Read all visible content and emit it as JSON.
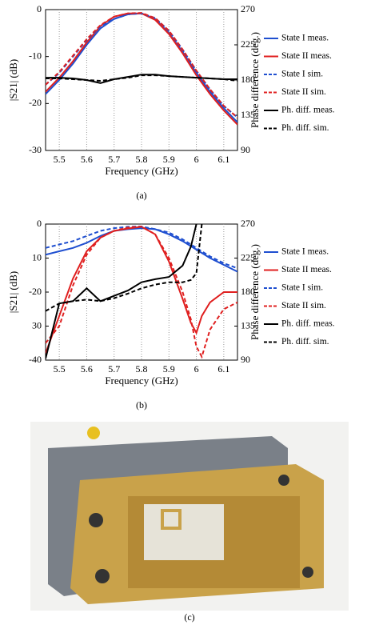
{
  "chart_data": [
    {
      "type": "line",
      "caption": "(a)",
      "xlabel": "Frequency (GHz)",
      "ylabel": "|S21| (dB)",
      "y2label": "Phase difference (deg.)",
      "xlim": [
        5.45,
        6.15
      ],
      "xticks": [
        5.5,
        5.6,
        5.7,
        5.8,
        5.9,
        6,
        6.1
      ],
      "ylim": [
        -30,
        0
      ],
      "yticks": [
        0,
        -10,
        -20,
        -30
      ],
      "y2lim": [
        90,
        270
      ],
      "y2ticks": [
        90,
        135,
        180,
        225,
        270
      ],
      "grid": "x",
      "x": [
        5.45,
        5.5,
        5.55,
        5.6,
        5.65,
        5.7,
        5.75,
        5.8,
        5.85,
        5.9,
        5.95,
        6.0,
        6.05,
        6.1,
        6.15
      ],
      "series": [
        {
          "name": "State I meas.",
          "color": "#1f4fd0",
          "dash": false,
          "values": [
            -18,
            -15,
            -11.5,
            -7.5,
            -4,
            -2,
            -1,
            -0.8,
            -2,
            -5,
            -9,
            -13.5,
            -17.5,
            -21,
            -24
          ]
        },
        {
          "name": "State II meas.",
          "color": "#e02020",
          "dash": false,
          "values": [
            -17.5,
            -14.5,
            -11,
            -7,
            -3.5,
            -1.5,
            -0.8,
            -0.8,
            -2.2,
            -5.2,
            -9.3,
            -14,
            -18,
            -21.5,
            -24.5
          ]
        },
        {
          "name": "State I sim.",
          "color": "#1f4fd0",
          "dash": true,
          "values": [
            -16,
            -13.5,
            -10,
            -6.5,
            -3.5,
            -2,
            -1,
            -0.8,
            -1.8,
            -4.5,
            -8.5,
            -13,
            -17,
            -20.5,
            -23
          ]
        },
        {
          "name": "State II sim.",
          "color": "#e02020",
          "dash": true,
          "values": [
            -16,
            -13.3,
            -9.8,
            -6.3,
            -3.3,
            -1.5,
            -0.8,
            -0.7,
            -1.8,
            -4.5,
            -8.5,
            -13,
            -17,
            -20.5,
            -23
          ]
        },
        {
          "name": "Ph. diff. meas.",
          "color": "#000000",
          "dash": false,
          "axis": "y2",
          "values": [
            183,
            183,
            182,
            180,
            176,
            181,
            184,
            187,
            187,
            185,
            184,
            183,
            182,
            181,
            181
          ]
        },
        {
          "name": "Ph. diff. sim.",
          "color": "#000000",
          "dash": true,
          "axis": "y2",
          "values": [
            182,
            182,
            181,
            180,
            179,
            181,
            183,
            186,
            186,
            185,
            184,
            183,
            182,
            181,
            179
          ]
        }
      ]
    },
    {
      "type": "line",
      "caption": "(b)",
      "xlabel": "Frequency (GHz)",
      "ylabel": "|S21| (dB)",
      "y2label": "Phase difference (deg.)",
      "xlim": [
        5.45,
        6.15
      ],
      "xticks": [
        5.5,
        5.6,
        5.7,
        5.8,
        5.9,
        6,
        6.1
      ],
      "ylim": [
        -40,
        0
      ],
      "yticks": [
        0,
        {
          "value": -10,
          "label": "10"
        },
        -20,
        {
          "value": -30,
          "label": "30"
        },
        -40
      ],
      "y2lim": [
        90,
        270
      ],
      "y2ticks": [
        90,
        135,
        180,
        225,
        270
      ],
      "grid": "x",
      "x": [
        5.45,
        5.5,
        5.55,
        5.6,
        5.65,
        5.7,
        5.75,
        5.8,
        5.85,
        5.9,
        5.95,
        5.98,
        6.0,
        6.02,
        6.05,
        6.1,
        6.15
      ],
      "series": [
        {
          "name": "State I meas.",
          "color": "#1f4fd0",
          "dash": false,
          "values": [
            -9,
            -8,
            -7,
            -5.5,
            -3.5,
            -2,
            -1.5,
            -1.2,
            -1.5,
            -3,
            -5,
            -6.5,
            -7.5,
            -8.5,
            -10,
            -12,
            -14
          ]
        },
        {
          "name": "State II meas.",
          "color": "#e02020",
          "dash": false,
          "values": [
            -38,
            -27,
            -16,
            -8,
            -4,
            -2,
            -1.3,
            -0.8,
            -3,
            -11,
            -22,
            -29,
            -32,
            -27,
            -23,
            -20,
            -20
          ]
        },
        {
          "name": "State I sim.",
          "color": "#1f4fd0",
          "dash": true,
          "values": [
            -7,
            -6,
            -5,
            -3.5,
            -2,
            -1.2,
            -0.8,
            -0.7,
            -1.5,
            -2.5,
            -4.5,
            -6,
            -7,
            -8,
            -9.5,
            -11.5,
            -13
          ]
        },
        {
          "name": "State II sim.",
          "color": "#e02020",
          "dash": true,
          "values": [
            -35,
            -30,
            -18,
            -9,
            -4,
            -2,
            -1,
            -0.7,
            -3,
            -10,
            -20,
            -28,
            -36,
            -39,
            -31,
            -25,
            -23
          ]
        },
        {
          "name": "Ph. diff. meas.",
          "color": "#000000",
          "dash": false,
          "axis": "y2",
          "values": [
            92,
            165,
            168,
            185,
            168,
            175,
            182,
            193,
            197,
            200,
            215,
            240,
            270,
            null,
            null,
            null,
            null
          ]
        },
        {
          "name": "Ph. diff. sim.",
          "color": "#000000",
          "dash": true,
          "axis": "y2",
          "values": [
            155,
            165,
            168,
            170,
            168,
            172,
            178,
            185,
            190,
            193,
            193,
            196,
            205,
            270,
            null,
            null,
            null
          ]
        }
      ]
    }
  ],
  "photo": {
    "caption": "(c)"
  }
}
